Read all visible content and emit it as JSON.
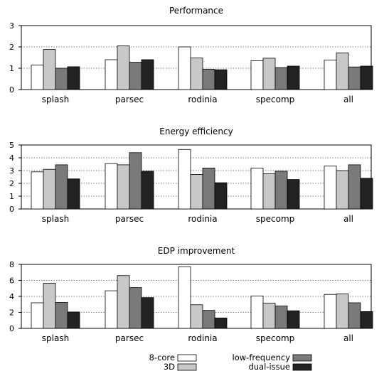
{
  "chart_data": [
    {
      "type": "bar",
      "title": "Performance",
      "categories": [
        "splash",
        "parsec",
        "rodinia",
        "specomp",
        "all"
      ],
      "ylim": [
        0,
        3
      ],
      "yticks": [
        "0",
        "1",
        "2",
        "3"
      ],
      "grid": "horizontal dotted",
      "series": [
        {
          "name": "8-core",
          "values": [
            1.15,
            1.4,
            2.0,
            1.35,
            1.38
          ]
        },
        {
          "name": "3D",
          "values": [
            1.88,
            2.05,
            1.48,
            1.47,
            1.72
          ]
        },
        {
          "name": "low-frequency",
          "values": [
            1.0,
            1.28,
            0.95,
            1.03,
            1.06
          ]
        },
        {
          "name": "dual-issue",
          "values": [
            1.07,
            1.4,
            0.93,
            1.1,
            1.1
          ]
        }
      ]
    },
    {
      "type": "bar",
      "title": "Energy efficiency",
      "categories": [
        "splash",
        "parsec",
        "rodinia",
        "specomp",
        "all"
      ],
      "ylim": [
        0,
        5
      ],
      "yticks": [
        "0",
        "1",
        "2",
        "3",
        "4",
        "5"
      ],
      "grid": "horizontal dotted",
      "series": [
        {
          "name": "8-core",
          "values": [
            2.9,
            3.55,
            4.65,
            3.2,
            3.35
          ]
        },
        {
          "name": "3D",
          "values": [
            3.1,
            3.45,
            2.7,
            2.75,
            3.0
          ]
        },
        {
          "name": "low-frequency",
          "values": [
            3.45,
            4.4,
            3.2,
            2.95,
            3.45
          ]
        },
        {
          "name": "dual-issue",
          "values": [
            2.35,
            2.95,
            2.05,
            2.3,
            2.4
          ]
        }
      ]
    },
    {
      "type": "bar",
      "title": "EDP improvement",
      "categories": [
        "splash",
        "parsec",
        "rodinia",
        "specomp",
        "all"
      ],
      "ylim": [
        0,
        8
      ],
      "yticks": [
        "0",
        "2",
        "4",
        "6",
        "8"
      ],
      "grid": "horizontal dotted",
      "series": [
        {
          "name": "8-core",
          "values": [
            3.2,
            4.7,
            7.7,
            4.05,
            4.25
          ]
        },
        {
          "name": "3D",
          "values": [
            5.65,
            6.6,
            2.95,
            3.15,
            4.3
          ]
        },
        {
          "name": "low-frequency",
          "values": [
            3.25,
            5.1,
            2.25,
            2.8,
            3.2
          ]
        },
        {
          "name": "dual-issue",
          "values": [
            2.05,
            3.85,
            1.3,
            2.2,
            2.1
          ]
        }
      ]
    }
  ],
  "legend": {
    "position": "bottom",
    "items": [
      {
        "label": "8-core",
        "color": "#ffffff"
      },
      {
        "label": "3D",
        "color": "#c8c8c8"
      },
      {
        "label": "low-frequency",
        "color": "#7a7a7a"
      },
      {
        "label": "dual-issue",
        "color": "#222222"
      }
    ]
  }
}
